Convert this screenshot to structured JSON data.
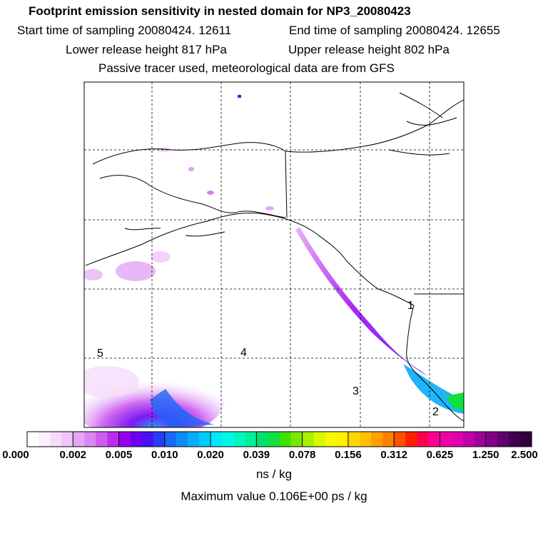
{
  "title": "Footprint emission sensitivity in nested domain for NP3_20080423",
  "start_time_label": "Start time of sampling 20080424. 12611",
  "end_time_label": "End time of sampling 20080424. 12655",
  "lower_release_label": "Lower release height  817 hPa",
  "upper_release_label": "Upper release height  802 hPa",
  "tracer_note": "Passive tracer used, meteorological data are from GFS",
  "map": {
    "region_labels": [
      "5",
      "4",
      "3",
      "2",
      "1"
    ],
    "land_color": "#ffffff",
    "coast_color": "#000000"
  },
  "colorbar": {
    "ticks": [
      "0.000",
      "0.002",
      "0.005",
      "0.010",
      "0.020",
      "0.039",
      "0.078",
      "0.156",
      "0.312",
      "0.625",
      "1.250",
      "2.500"
    ],
    "colors": [
      "#ffffff",
      "#fbeefd",
      "#f5dcfb",
      "#f0c6fa",
      "#e6a6f5",
      "#da86f3",
      "#cc5cf0",
      "#bb2cee",
      "#9a00f0",
      "#6f00f2",
      "#4a10f4",
      "#2a3cf6",
      "#1968f8",
      "#0f8cf8",
      "#08acfa",
      "#00ccfc",
      "#00e8fc",
      "#00f8e8",
      "#00f8c0",
      "#00f098",
      "#00e070",
      "#10e040",
      "#40e000",
      "#78e800",
      "#a8f000",
      "#d8f800",
      "#f8f800",
      "#fff000",
      "#ffd800",
      "#ffc000",
      "#ffa000",
      "#ff8000",
      "#ff5000",
      "#ff2000",
      "#ff0050",
      "#ff0090",
      "#f000a8",
      "#e000b0",
      "#c000a8",
      "#a00098",
      "#800088",
      "#600070",
      "#400050",
      "#300040"
    ],
    "units": "ns / kg"
  },
  "max_value_label": "Maximum value  0.106E+00 ps / kg"
}
